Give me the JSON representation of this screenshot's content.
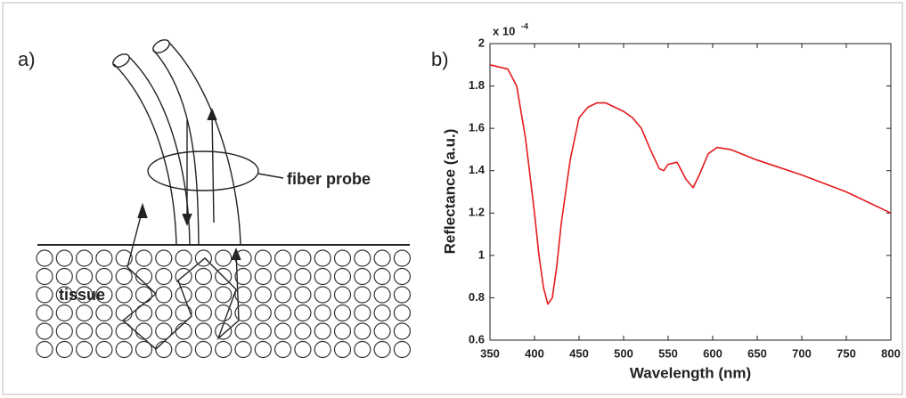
{
  "panel_a": {
    "label": "a)",
    "probe_label": "fiber probe",
    "tissue_label": "tissue"
  },
  "chart_data": {
    "type": "line",
    "panel_label": "b)",
    "x_label": "Wavelength (nm)",
    "y_label": "Reflectance (a.u.)",
    "scale_label": {
      "base": "x 10",
      "exponent": "-4"
    },
    "x": [
      350,
      360,
      370,
      380,
      390,
      400,
      405,
      410,
      415,
      420,
      425,
      430,
      440,
      450,
      460,
      470,
      480,
      490,
      500,
      510,
      520,
      530,
      540,
      545,
      550,
      560,
      570,
      578,
      585,
      595,
      605,
      620,
      650,
      700,
      750,
      800
    ],
    "values": [
      1.9,
      1.89,
      1.88,
      1.8,
      1.55,
      1.2,
      1.0,
      0.85,
      0.77,
      0.8,
      0.95,
      1.15,
      1.45,
      1.65,
      1.7,
      1.72,
      1.72,
      1.7,
      1.68,
      1.65,
      1.6,
      1.5,
      1.41,
      1.4,
      1.43,
      1.44,
      1.36,
      1.32,
      1.38,
      1.48,
      1.51,
      1.5,
      1.45,
      1.38,
      1.3,
      1.2
    ],
    "color": "#e41a1c",
    "xlim": [
      350,
      800
    ],
    "xticks": [
      350,
      400,
      450,
      500,
      550,
      600,
      650,
      700,
      750,
      800
    ],
    "ylim": [
      0.6,
      2
    ],
    "yticks": [
      0.6,
      0.8,
      1,
      1.2,
      1.4,
      1.6,
      1.8,
      2
    ],
    "grid": false
  }
}
